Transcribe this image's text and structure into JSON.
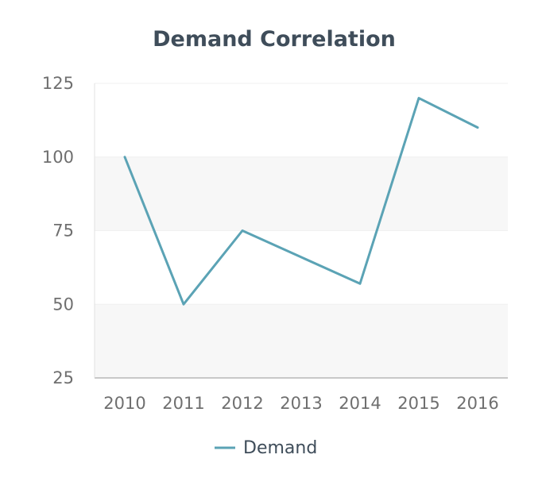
{
  "chart_data": {
    "type": "line",
    "title": "Demand Correlation",
    "xlabel": "",
    "ylabel": "",
    "categories": [
      "2010",
      "2011",
      "2012",
      "2013",
      "2014",
      "2015",
      "2016"
    ],
    "series": [
      {
        "name": "Demand",
        "values": [
          100,
          50,
          75,
          66,
          57,
          120,
          110
        ],
        "color": "#5ba3b5"
      }
    ],
    "ylim": [
      25,
      125
    ],
    "yticks": [
      25,
      50,
      75,
      100,
      125
    ],
    "grid": true,
    "band_colors": [
      "#f7f7f7",
      "#ffffff"
    ],
    "legend": "bottom"
  }
}
